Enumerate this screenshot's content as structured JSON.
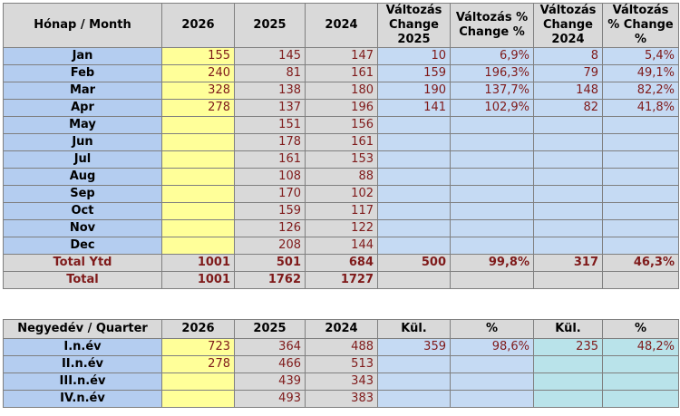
{
  "monthly": {
    "headers": [
      "Hónap / Month",
      "2026",
      "2025",
      "2024",
      "Változás Change 2025",
      "Változás % Change %",
      "Változás Change 2024",
      "Változás % Change %"
    ],
    "rows": [
      {
        "month": "Jan",
        "y2026": "155",
        "y2025": "145",
        "y2024": "147",
        "ch25": "10",
        "pct25": "6,9%",
        "ch24": "8",
        "pct24": "5,4%"
      },
      {
        "month": "Feb",
        "y2026": "240",
        "y2025": "81",
        "y2024": "161",
        "ch25": "159",
        "pct25": "196,3%",
        "ch24": "79",
        "pct24": "49,1%"
      },
      {
        "month": "Mar",
        "y2026": "328",
        "y2025": "138",
        "y2024": "180",
        "ch25": "190",
        "pct25": "137,7%",
        "ch24": "148",
        "pct24": "82,2%"
      },
      {
        "month": "Apr",
        "y2026": "278",
        "y2025": "137",
        "y2024": "196",
        "ch25": "141",
        "pct25": "102,9%",
        "ch24": "82",
        "pct24": "41,8%"
      },
      {
        "month": "May",
        "y2026": "",
        "y2025": "151",
        "y2024": "156",
        "ch25": "",
        "pct25": "",
        "ch24": "",
        "pct24": ""
      },
      {
        "month": "Jun",
        "y2026": "",
        "y2025": "178",
        "y2024": "161",
        "ch25": "",
        "pct25": "",
        "ch24": "",
        "pct24": ""
      },
      {
        "month": "Jul",
        "y2026": "",
        "y2025": "161",
        "y2024": "153",
        "ch25": "",
        "pct25": "",
        "ch24": "",
        "pct24": ""
      },
      {
        "month": "Aug",
        "y2026": "",
        "y2025": "108",
        "y2024": "88",
        "ch25": "",
        "pct25": "",
        "ch24": "",
        "pct24": ""
      },
      {
        "month": "Sep",
        "y2026": "",
        "y2025": "170",
        "y2024": "102",
        "ch25": "",
        "pct25": "",
        "ch24": "",
        "pct24": ""
      },
      {
        "month": "Oct",
        "y2026": "",
        "y2025": "159",
        "y2024": "117",
        "ch25": "",
        "pct25": "",
        "ch24": "",
        "pct24": ""
      },
      {
        "month": "Nov",
        "y2026": "",
        "y2025": "126",
        "y2024": "122",
        "ch25": "",
        "pct25": "",
        "ch24": "",
        "pct24": ""
      },
      {
        "month": "Dec",
        "y2026": "",
        "y2025": "208",
        "y2024": "144",
        "ch25": "",
        "pct25": "",
        "ch24": "",
        "pct24": ""
      }
    ],
    "ytd": {
      "label": "Total Ytd",
      "y2026": "1001",
      "y2025": "501",
      "y2024": "684",
      "ch25": "500",
      "pct25": "99,8%",
      "ch24": "317",
      "pct24": "46,3%"
    },
    "total": {
      "label": "Total",
      "y2026": "1001",
      "y2025": "1762",
      "y2024": "1727"
    }
  },
  "quarterly": {
    "headers": [
      "Negyedév / Quarter",
      "2026",
      "2025",
      "2024",
      "Kül.",
      "%",
      "Kül.",
      "%"
    ],
    "rows": [
      {
        "q": "I.n.év",
        "y2026": "723",
        "y2025": "364",
        "y2024": "488",
        "k25": "359",
        "p25": "98,6%",
        "k24": "235",
        "p24": "48,2%"
      },
      {
        "q": "II.n.év",
        "y2026": "278",
        "y2025": "466",
        "y2024": "513",
        "k25": "",
        "p25": "",
        "k24": "",
        "p24": ""
      },
      {
        "q": "III.n.év",
        "y2026": "",
        "y2025": "439",
        "y2024": "343",
        "k25": "",
        "p25": "",
        "k24": "",
        "p24": ""
      },
      {
        "q": "IV.n.év",
        "y2026": "",
        "y2025": "493",
        "y2024": "383",
        "k25": "",
        "p25": "",
        "k24": "",
        "p24": ""
      }
    ]
  }
}
